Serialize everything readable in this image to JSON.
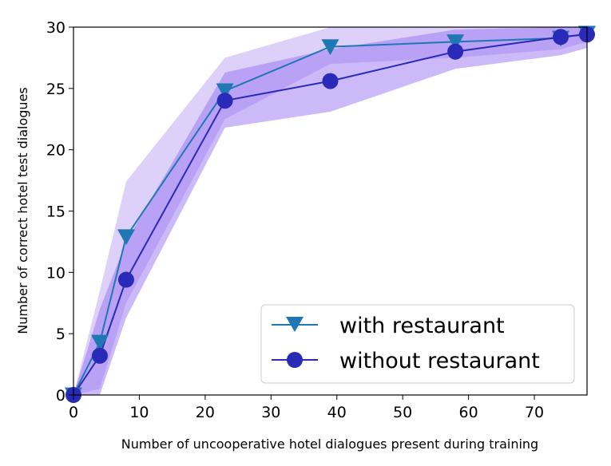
{
  "chart_data": {
    "type": "line",
    "xlabel": "Number of uncooperative hotel dialogues present during training",
    "ylabel": "Number of correct hotel test dialogues",
    "xlim": [
      0,
      78
    ],
    "ylim": [
      0,
      30
    ],
    "xticks": [
      0,
      10,
      20,
      30,
      40,
      50,
      60,
      70
    ],
    "yticks": [
      0,
      5,
      10,
      15,
      20,
      25,
      30
    ],
    "grid": false,
    "legend_position": "lower-right",
    "series": [
      {
        "name": "with restaurant",
        "marker": "triangle-down",
        "color": "#1f77b4",
        "band_color": "#b399f5",
        "x": [
          0,
          4,
          8,
          23,
          39,
          58,
          74,
          78
        ],
        "y": [
          0,
          4.3,
          12.9,
          24.8,
          28.4,
          28.8,
          29.1,
          29.5
        ],
        "lower": [
          0,
          0.5,
          7.5,
          22.5,
          27.0,
          27.5,
          28.2,
          28.8
        ],
        "upper": [
          0,
          8.5,
          17.4,
          27.5,
          30.0,
          30.0,
          30.0,
          30.0
        ]
      },
      {
        "name": "without restaurant",
        "marker": "circle",
        "color": "#2a2ab8",
        "band_color": "#8f66f0",
        "x": [
          0,
          4,
          8,
          23,
          39,
          58,
          74,
          78
        ],
        "y": [
          0,
          3.2,
          9.4,
          24.0,
          25.6,
          28.0,
          29.2,
          29.4
        ],
        "lower": [
          0,
          0,
          6.3,
          21.8,
          23.1,
          26.6,
          27.7,
          28.3
        ],
        "upper": [
          0,
          7.0,
          12.5,
          26.3,
          28.2,
          29.8,
          30.0,
          30.0
        ]
      }
    ]
  }
}
